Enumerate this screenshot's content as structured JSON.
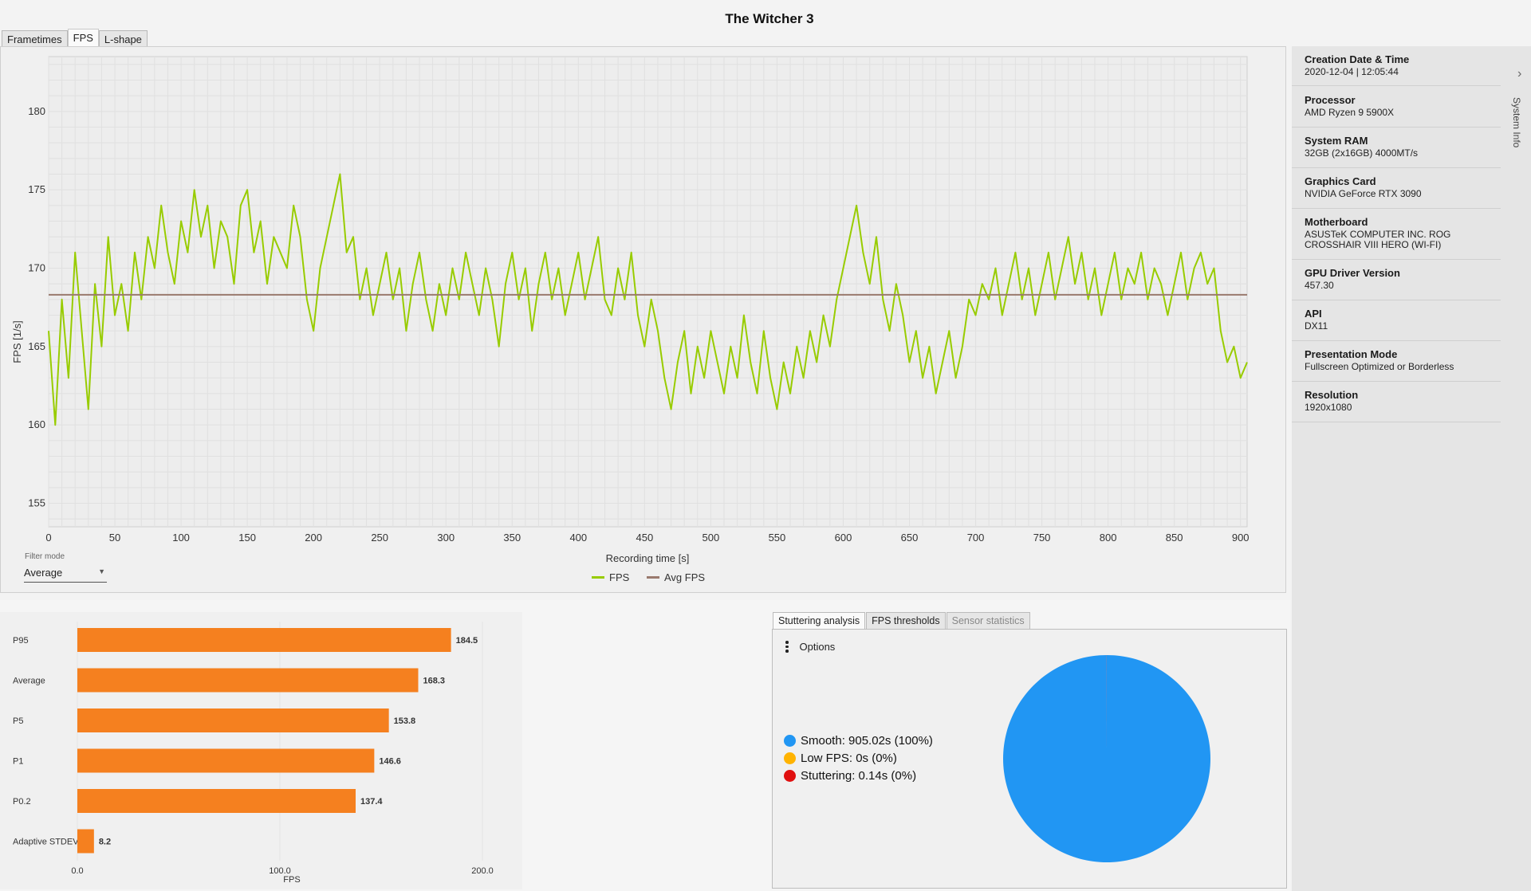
{
  "app_title": "The Witcher 3",
  "top_tabs": [
    {
      "label": "Frametimes",
      "active": false
    },
    {
      "label": "FPS",
      "active": true
    },
    {
      "label": "L-shape",
      "active": false
    }
  ],
  "filter": {
    "label": "Filter mode",
    "value": "Average"
  },
  "legend": [
    {
      "label": "FPS",
      "color": "#98cc00"
    },
    {
      "label": "Avg FPS",
      "color": "#9a7a6e"
    }
  ],
  "system_info": {
    "rail_label": "System Info",
    "items": [
      {
        "label": "Creation Date & Time",
        "value": "2020-12-04  |  12:05:44"
      },
      {
        "label": "Processor",
        "value": "AMD Ryzen 9 5900X"
      },
      {
        "label": "System RAM",
        "value": "32GB (2x16GB) 4000MT/s"
      },
      {
        "label": "Graphics Card",
        "value": "NVIDIA GeForce RTX 3090"
      },
      {
        "label": "Motherboard",
        "value": "ASUSTeK COMPUTER INC. ROG CROSSHAIR VIII HERO (WI-FI)"
      },
      {
        "label": "GPU Driver Version",
        "value": "457.30"
      },
      {
        "label": "API",
        "value": "DX11"
      },
      {
        "label": "Presentation Mode",
        "value": "Fullscreen Optimized or Borderless"
      },
      {
        "label": "Resolution",
        "value": "1920x1080"
      }
    ]
  },
  "bottom_tabs": [
    {
      "label": "Stuttering analysis",
      "state": "active"
    },
    {
      "label": "FPS thresholds",
      "state": "normal"
    },
    {
      "label": "Sensor statistics",
      "state": "disabled"
    }
  ],
  "stuttering": {
    "options_label": "Options",
    "items": [
      {
        "text": "Smooth:  905.02s (100%)",
        "color": "#2196f3"
      },
      {
        "text": "Low FPS:  0s (0%)",
        "color": "#ffb300"
      },
      {
        "text": "Stuttering:  0.14s (0%)",
        "color": "#e01010"
      }
    ],
    "pie_color": "#2196f3"
  },
  "chart_data": [
    {
      "type": "line",
      "title": "",
      "xlabel": "Recording time [s]",
      "ylabel": "FPS [1/s]",
      "xlim": [
        0,
        905
      ],
      "ylim": [
        153.5,
        183.5
      ],
      "xticks": [
        0,
        50,
        100,
        150,
        200,
        250,
        300,
        350,
        400,
        450,
        500,
        550,
        600,
        650,
        700,
        750,
        800,
        850,
        900
      ],
      "yticks": [
        155,
        160,
        165,
        170,
        175,
        180
      ],
      "grid": true,
      "legend_position": "bottom-center",
      "series": [
        {
          "name": "FPS",
          "color": "#98cc00",
          "x": [
            0,
            5,
            10,
            15,
            20,
            25,
            30,
            35,
            40,
            45,
            50,
            55,
            60,
            65,
            70,
            75,
            80,
            85,
            90,
            95,
            100,
            105,
            110,
            115,
            120,
            125,
            130,
            135,
            140,
            145,
            150,
            155,
            160,
            165,
            170,
            175,
            180,
            185,
            190,
            195,
            200,
            205,
            210,
            215,
            220,
            225,
            230,
            235,
            240,
            245,
            250,
            255,
            260,
            265,
            270,
            275,
            280,
            285,
            290,
            295,
            300,
            305,
            310,
            315,
            320,
            325,
            330,
            335,
            340,
            345,
            350,
            355,
            360,
            365,
            370,
            375,
            380,
            385,
            390,
            395,
            400,
            405,
            410,
            415,
            420,
            425,
            430,
            435,
            440,
            445,
            450,
            455,
            460,
            465,
            470,
            475,
            480,
            485,
            490,
            495,
            500,
            505,
            510,
            515,
            520,
            525,
            530,
            535,
            540,
            545,
            550,
            555,
            560,
            565,
            570,
            575,
            580,
            585,
            590,
            595,
            600,
            605,
            610,
            615,
            620,
            625,
            630,
            635,
            640,
            645,
            650,
            655,
            660,
            665,
            670,
            675,
            680,
            685,
            690,
            695,
            700,
            705,
            710,
            715,
            720,
            725,
            730,
            735,
            740,
            745,
            750,
            755,
            760,
            765,
            770,
            775,
            780,
            785,
            790,
            795,
            800,
            805,
            810,
            815,
            820,
            825,
            830,
            835,
            840,
            845,
            850,
            855,
            860,
            865,
            870,
            875,
            880,
            885,
            890,
            895,
            900,
            905
          ],
          "y": [
            166,
            160,
            168,
            163,
            171,
            166,
            161,
            169,
            165,
            172,
            167,
            169,
            166,
            171,
            168,
            172,
            170,
            174,
            171,
            169,
            173,
            171,
            175,
            172,
            174,
            170,
            173,
            172,
            169,
            174,
            175,
            171,
            173,
            169,
            172,
            171,
            170,
            174,
            172,
            168,
            166,
            170,
            172,
            174,
            176,
            171,
            172,
            168,
            170,
            167,
            169,
            171,
            168,
            170,
            166,
            169,
            171,
            168,
            166,
            169,
            167,
            170,
            168,
            171,
            169,
            167,
            170,
            168,
            165,
            169,
            171,
            168,
            170,
            166,
            169,
            171,
            168,
            170,
            167,
            169,
            171,
            168,
            170,
            172,
            168,
            167,
            170,
            168,
            171,
            167,
            165,
            168,
            166,
            163,
            161,
            164,
            166,
            162,
            165,
            163,
            166,
            164,
            162,
            165,
            163,
            167,
            164,
            162,
            166,
            163,
            161,
            164,
            162,
            165,
            163,
            166,
            164,
            167,
            165,
            168,
            170,
            172,
            174,
            171,
            169,
            172,
            168,
            166,
            169,
            167,
            164,
            166,
            163,
            165,
            162,
            164,
            166,
            163,
            165,
            168,
            167,
            169,
            168,
            170,
            167,
            169,
            171,
            168,
            170,
            167,
            169,
            171,
            168,
            170,
            172,
            169,
            171,
            168,
            170,
            167,
            169,
            171,
            168,
            170,
            169,
            171,
            168,
            170,
            169,
            167,
            169,
            171,
            168,
            170,
            171,
            169,
            170,
            166,
            164,
            165,
            163,
            164
          ]
        },
        {
          "name": "Avg FPS",
          "color": "#9a7a6e",
          "x": [
            0,
            905
          ],
          "y": [
            168.3,
            168.3
          ]
        }
      ]
    },
    {
      "type": "bar",
      "orientation": "horizontal",
      "title": "",
      "xlabel": "FPS",
      "xlim": [
        0,
        200
      ],
      "xticks": [
        "0.0",
        "100.0",
        "200.0"
      ],
      "categories": [
        "P95",
        "Average",
        "P5",
        "P1",
        "P0.2",
        "Adaptive STDEV"
      ],
      "values": [
        184.5,
        168.3,
        153.8,
        146.6,
        137.4,
        8.2
      ],
      "value_labels": [
        "184.5",
        "168.3",
        "153.8",
        "146.6",
        "137.4",
        "8.2"
      ],
      "color": "#f5801f"
    },
    {
      "type": "pie",
      "labels": [
        "Smooth",
        "Low FPS",
        "Stuttering"
      ],
      "values": [
        905.02,
        0,
        0.14
      ],
      "colors": [
        "#2196f3",
        "#ffb300",
        "#e01010"
      ]
    }
  ]
}
